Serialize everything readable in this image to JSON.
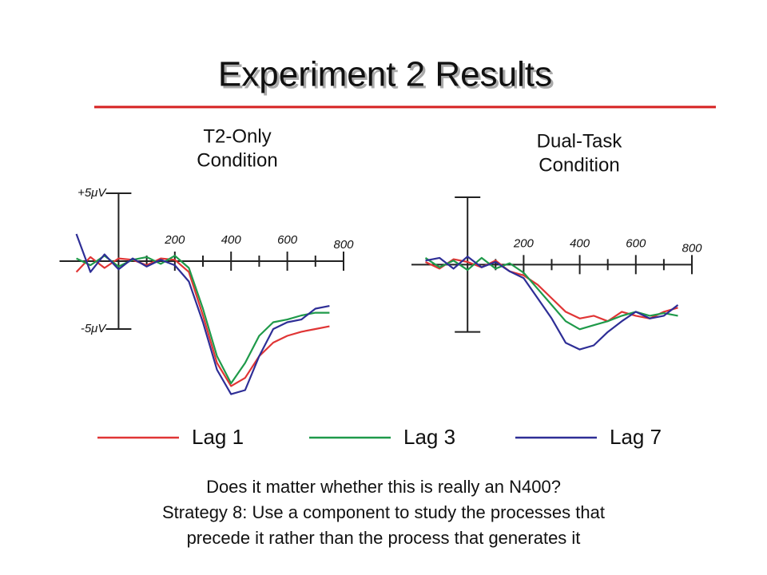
{
  "title": "Experiment 2 Results",
  "chart_data": [
    {
      "type": "line",
      "title": [
        "T2-Only",
        "Condition"
      ],
      "x": [
        -150,
        -100,
        -50,
        0,
        50,
        100,
        150,
        200,
        250,
        300,
        350,
        400,
        450,
        500,
        550,
        600,
        650,
        700,
        750
      ],
      "series": [
        {
          "name": "Lag 1",
          "color": "#e03535",
          "values": [
            -0.8,
            0.3,
            -0.5,
            0.2,
            0.1,
            -0.3,
            0.2,
            0.1,
            -0.8,
            -4.0,
            -7.5,
            -9.2,
            -8.6,
            -7.0,
            -6.0,
            -5.5,
            -5.2,
            -5.0,
            -4.8
          ]
        },
        {
          "name": "Lag 3",
          "color": "#1f9a4a",
          "values": [
            0.2,
            -0.3,
            0.4,
            -0.4,
            0.1,
            0.3,
            -0.2,
            0.4,
            -0.5,
            -3.5,
            -7.0,
            -9.0,
            -7.5,
            -5.5,
            -4.5,
            -4.3,
            -4.0,
            -3.8,
            -3.8
          ]
        },
        {
          "name": "Lag 7",
          "color": "#2e2e96",
          "values": [
            2.0,
            -0.8,
            0.5,
            -0.6,
            0.2,
            -0.4,
            0.1,
            -0.3,
            -1.5,
            -4.5,
            -8.0,
            -9.8,
            -9.5,
            -7.0,
            -5.0,
            -4.5,
            -4.3,
            -3.5,
            -3.3
          ]
        }
      ],
      "xlim": [
        -210,
        800
      ],
      "xticks": [
        200,
        400,
        600,
        800
      ],
      "xminor_ticks": [
        100,
        300,
        500,
        700
      ],
      "ylim": [
        -10,
        5
      ],
      "yticks": [
        {
          "value": 5,
          "label": "+5μV"
        },
        {
          "value": -5,
          "label": "-5μV"
        }
      ]
    },
    {
      "type": "line",
      "title": [
        "Dual-Task",
        "Condition"
      ],
      "x": [
        -150,
        -100,
        -50,
        0,
        50,
        100,
        150,
        200,
        250,
        300,
        350,
        400,
        450,
        500,
        550,
        600,
        650,
        700,
        750
      ],
      "series": [
        {
          "name": "Lag 1",
          "color": "#e03535",
          "values": [
            0.2,
            -0.3,
            0.4,
            0.2,
            -0.2,
            0.3,
            -0.5,
            -0.8,
            -1.5,
            -2.5,
            -3.5,
            -4.0,
            -3.8,
            -4.2,
            -3.5,
            -3.8,
            -4.0,
            -3.5,
            -3.2
          ]
        },
        {
          "name": "Lag 3",
          "color": "#1f9a4a",
          "values": [
            0.5,
            -0.2,
            0.3,
            -0.4,
            0.5,
            -0.3,
            0.1,
            -0.6,
            -1.8,
            -3.0,
            -4.2,
            -4.8,
            -4.5,
            -4.2,
            -3.8,
            -3.5,
            -3.8,
            -3.6,
            -3.8
          ]
        },
        {
          "name": "Lag 7",
          "color": "#2e2e96",
          "values": [
            0.3,
            0.5,
            -0.3,
            0.6,
            -0.2,
            0.2,
            -0.5,
            -1.0,
            -2.5,
            -4.0,
            -5.8,
            -6.3,
            -6.0,
            -5.0,
            -4.2,
            -3.5,
            -4.0,
            -3.8,
            -3.0
          ]
        }
      ],
      "xlim": [
        -200,
        800
      ],
      "xticks": [
        200,
        400,
        600,
        800
      ],
      "xminor_ticks": [
        100,
        300,
        500,
        700
      ],
      "ylim": [
        -10,
        5
      ],
      "yticks": [
        5,
        -5
      ],
      "show_ytick_labels": false
    }
  ],
  "notes": [
    "Does it matter whether this is really an N400?",
    "Strategy 8: Use a component to study the processes that",
    "precede it rather than the process that generates it"
  ]
}
